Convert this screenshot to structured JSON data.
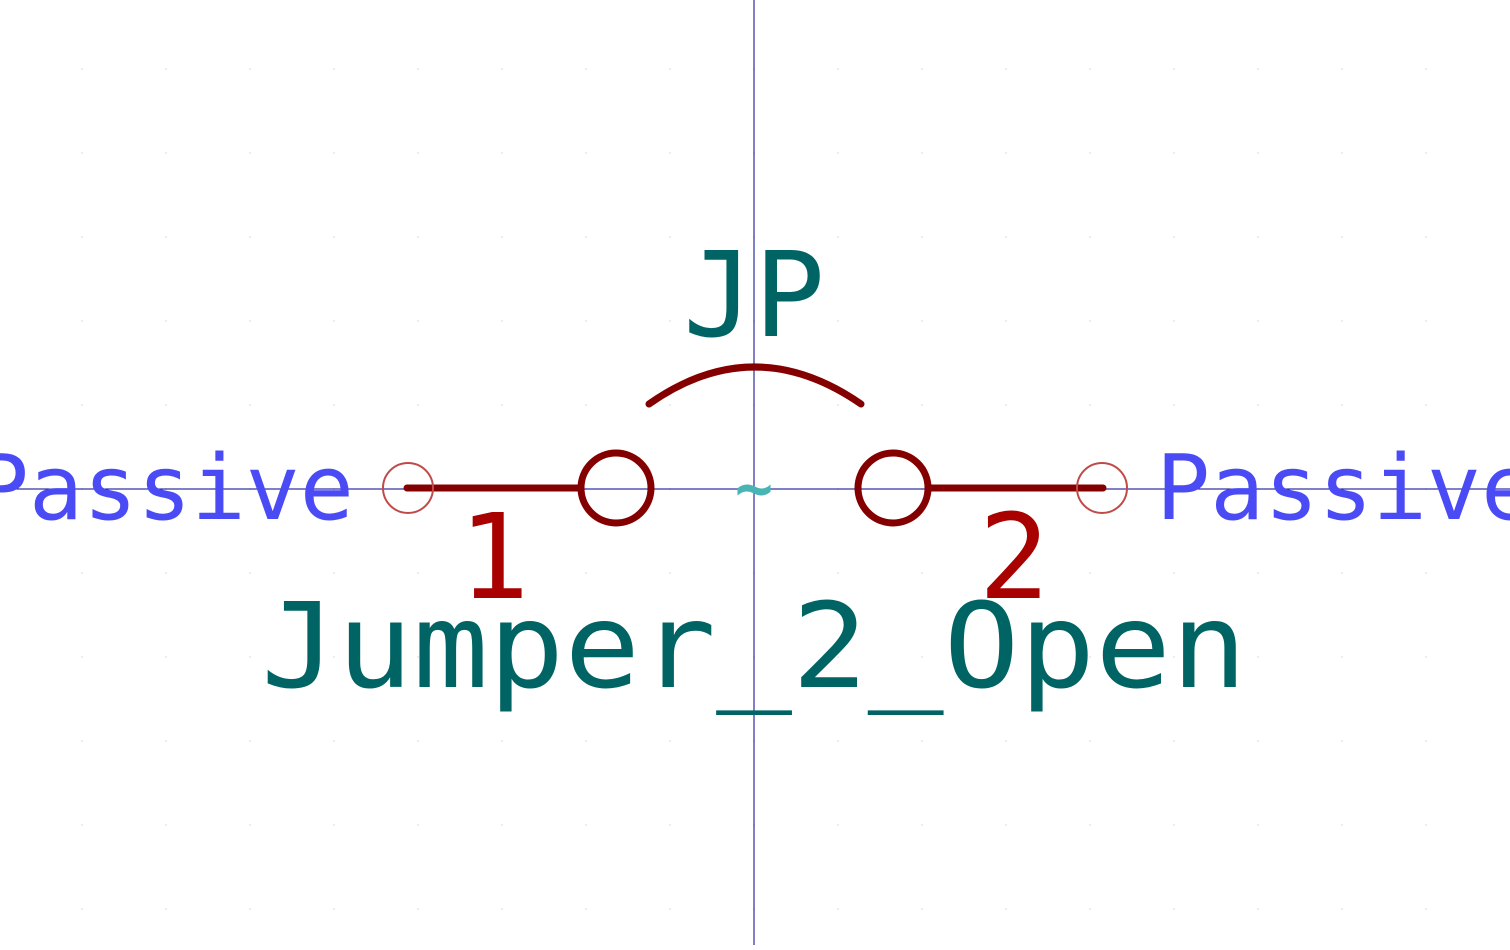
{
  "symbol": {
    "reference": "JP",
    "value": "Jumper_2_Open",
    "unit_indicator": "~"
  },
  "pins": [
    {
      "number": "1",
      "electrical_type": "Passive"
    },
    {
      "number": "2",
      "electrical_type": "Passive"
    }
  ],
  "colors": {
    "background": "#ffffff",
    "body": "#840000",
    "pin": "#840000",
    "pin_number": "#a90000",
    "pin_type": "#4b4bf5",
    "field": "#006464",
    "unit_indicator": "#48b4b4",
    "axis": "#00008c",
    "pin_end_marker": "#c04a4a",
    "grid": "#e6e6e6"
  },
  "grid": {
    "visible": true
  }
}
